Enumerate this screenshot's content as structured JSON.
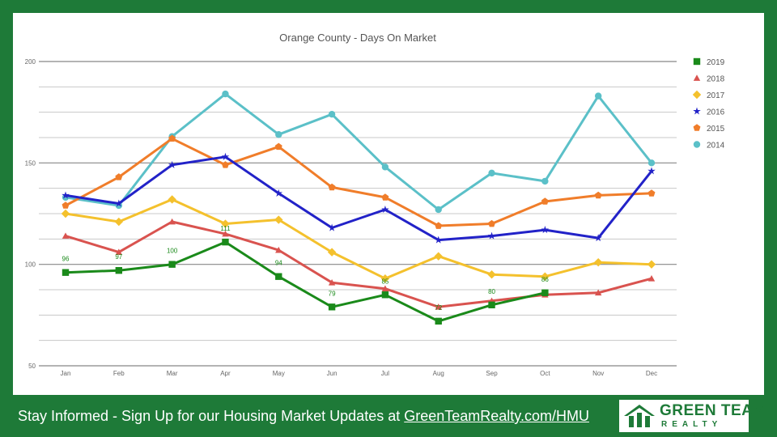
{
  "chart_data": {
    "type": "line",
    "title": "Orange County - Days On Market",
    "xlabel": "",
    "ylabel": "",
    "categories": [
      "Jan",
      "Feb",
      "Mar",
      "Apr",
      "May",
      "Jun",
      "Jul",
      "Aug",
      "Sep",
      "Oct",
      "Nov",
      "Dec"
    ],
    "ylim": [
      50,
      200
    ],
    "yticks": [
      50,
      100,
      150,
      200
    ],
    "grid": true,
    "legend_position": "right",
    "series": [
      {
        "name": "2014",
        "color": "#5bc0c8",
        "marker": "circle",
        "values": [
          133,
          129,
          163,
          184,
          164,
          174,
          148,
          127,
          145,
          141,
          183,
          150
        ]
      },
      {
        "name": "2015",
        "color": "#f07d2a",
        "marker": "pentagon",
        "values": [
          129,
          143,
          162,
          149,
          158,
          138,
          133,
          119,
          120,
          131,
          134,
          135
        ]
      },
      {
        "name": "2016",
        "color": "#2222c8",
        "marker": "star",
        "values": [
          134,
          130,
          149,
          153,
          135,
          118,
          127,
          112,
          114,
          117,
          113,
          146
        ]
      },
      {
        "name": "2017",
        "color": "#f4c12d",
        "marker": "diamond",
        "values": [
          125,
          121,
          132,
          120,
          122,
          106,
          93,
          104,
          95,
          94,
          101,
          100
        ]
      },
      {
        "name": "2018",
        "color": "#d9534f",
        "marker": "triangle",
        "values": [
          114,
          106,
          121,
          115,
          107,
          91,
          88,
          79,
          82,
          85,
          86,
          93
        ]
      },
      {
        "name": "2019",
        "color": "#1a8a1a",
        "marker": "square",
        "values": [
          96,
          97,
          100,
          111,
          94,
          79,
          85,
          72,
          80,
          86,
          null,
          null
        ],
        "data_labels": [
          "96",
          "97",
          "100",
          "111",
          "94",
          "79",
          "85",
          "72",
          "80",
          "86",
          null,
          null
        ]
      }
    ]
  },
  "footer": {
    "text": "Stay Informed - Sign Up for our Housing Market Updates at ",
    "link": "GreenTeamRealty.com/HMU"
  },
  "logo": {
    "title": "GREEN TEAM",
    "subtitle": "REALTY"
  },
  "colors": {
    "brand_green": "#1e7a38",
    "background": "#ffffff",
    "grid": "#9e9e9e"
  }
}
